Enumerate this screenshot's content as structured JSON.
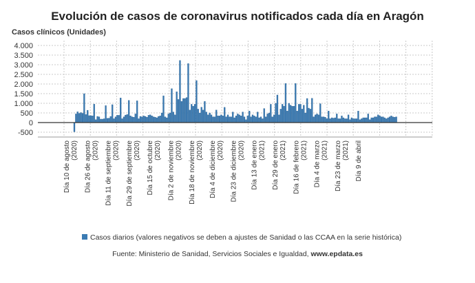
{
  "chart_data": {
    "type": "bar",
    "title": "Evolución de casos de coronavirus notificados cada día en Aragón",
    "ylabel": "Casos clínicos (Unidades)",
    "ylim": [
      -750,
      4250
    ],
    "yticks": [
      4000,
      3500,
      3000,
      2500,
      2000,
      1500,
      1000,
      500,
      0,
      -500
    ],
    "ytick_labels": [
      "4.000",
      "3.500",
      "3.000",
      "2.500",
      "2.000",
      "1.500",
      "1.000",
      "500",
      "0",
      "-500"
    ],
    "grid": true,
    "legend_position": "bottom",
    "colors": {
      "bar": "#3b7bb3",
      "bar_edge": "#2a5f8f",
      "zero_line": "#333333",
      "grid": "#c8c8c8"
    },
    "xtick_labels": [
      [
        "Día 10 de agosto",
        "(2020)"
      ],
      [
        "Día 26 de agosto",
        "(2020)"
      ],
      [
        "Día 11 de septiembre",
        "(2020)"
      ],
      [
        "Día 29 de septiembre",
        "(2020)"
      ],
      [
        "Día 15 de octubre",
        "(2020)"
      ],
      [
        "Día 2 de noviembre",
        "(2020)"
      ],
      [
        "Día 18 de noviembre",
        "(2020)"
      ],
      [
        "Día 4 de diciembre",
        "(2020)"
      ],
      [
        "Día 23 de diciembre",
        "(2020)"
      ],
      [
        "Día 13 de enero",
        "(2021)"
      ],
      [
        "Día 29 de enero",
        "(2021)"
      ],
      [
        "Día 16 de febrero",
        "(2021)"
      ],
      [
        "Día 4 de marzo",
        "(2021)"
      ],
      [
        "Día 23 de marzo",
        "(2021)"
      ],
      [
        "Día 9 de abril",
        ""
      ]
    ],
    "series": [
      {
        "name": "Casos diarios (valores negativos se deben a ajustes de Sanidad o las CCAA en la serie histórica)",
        "values": [
          -480,
          450,
          560,
          480,
          520,
          480,
          1500,
          420,
          640,
          360,
          360,
          350,
          960,
          150,
          320,
          300,
          180,
          180,
          200,
          880,
          220,
          230,
          320,
          930,
          200,
          300,
          380,
          380,
          1280,
          200,
          300,
          390,
          420,
          1150,
          350,
          300,
          280,
          450,
          1130,
          200,
          320,
          300,
          350,
          320,
          280,
          380,
          400,
          350,
          300,
          280,
          250,
          320,
          350,
          500,
          1390,
          300,
          250,
          450,
          500,
          1760,
          550,
          400,
          1600,
          1200,
          3220,
          1100,
          1250,
          1250,
          1300,
          3060,
          650,
          950,
          850,
          950,
          2180,
          700,
          500,
          800,
          650,
          1100,
          550,
          400,
          500,
          400,
          300,
          300,
          650,
          350,
          350,
          400,
          350,
          790,
          300,
          400,
          300,
          300,
          550,
          250,
          350,
          450,
          400,
          350,
          550,
          300,
          150,
          350,
          600,
          300,
          400,
          350,
          300,
          550,
          250,
          300,
          200,
          730,
          300,
          450,
          500,
          950,
          300,
          400,
          1000,
          1430,
          400,
          700,
          950,
          850,
          2030,
          600,
          1000,
          900,
          850,
          850,
          2030,
          600,
          950,
          950,
          700,
          900,
          500,
          1250,
          750,
          700,
          1260,
          300,
          400,
          450,
          400,
          980,
          300,
          300,
          280,
          200,
          600,
          200,
          250,
          230,
          250,
          450,
          200,
          200,
          350,
          250,
          200,
          200,
          400,
          150,
          250,
          200,
          200,
          200,
          600,
          150,
          200,
          250,
          250,
          250,
          450,
          150,
          250,
          250,
          300,
          300,
          400,
          350,
          300,
          300,
          250,
          200,
          250,
          300,
          350,
          300,
          280,
          300
        ]
      }
    ]
  },
  "legend_label": "Casos diarios (valores negativos se deben a ajustes de Sanidad o las CCAA en la serie histórica)",
  "source": {
    "prefix": "Fuente: Ministerio de Sanidad, Servicios Sociales e Igualdad, ",
    "site": "www.epdata.es"
  }
}
